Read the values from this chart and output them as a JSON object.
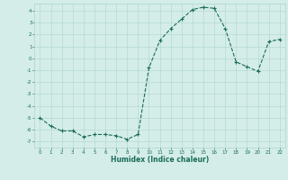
{
  "x": [
    0,
    1,
    2,
    3,
    4,
    5,
    6,
    7,
    8,
    9,
    10,
    11,
    12,
    13,
    14,
    15,
    16,
    17,
    18,
    19,
    20,
    21,
    22
  ],
  "y": [
    -5.0,
    -5.7,
    -6.1,
    -6.1,
    -6.6,
    -6.4,
    -6.4,
    -6.5,
    -6.8,
    -6.4,
    -0.8,
    1.5,
    2.5,
    3.3,
    4.1,
    4.3,
    4.2,
    2.5,
    -0.3,
    -0.7,
    -1.1,
    1.4,
    1.6
  ],
  "line_color": "#1a6b5a",
  "marker": "+",
  "marker_size": 3,
  "marker_lw": 0.8,
  "xlabel": "Humidex (Indice chaleur)",
  "ylim": [
    -7.5,
    4.6
  ],
  "xlim": [
    -0.5,
    22.5
  ],
  "yticks": [
    -7,
    -6,
    -5,
    -4,
    -3,
    -2,
    -1,
    0,
    1,
    2,
    3,
    4
  ],
  "xticks": [
    0,
    1,
    2,
    3,
    4,
    5,
    6,
    7,
    8,
    9,
    10,
    11,
    12,
    13,
    14,
    15,
    16,
    17,
    18,
    19,
    20,
    21,
    22
  ],
  "bg_color": "#d4ede8",
  "grid_color": "#aed4cc",
  "line_width": 0.8
}
